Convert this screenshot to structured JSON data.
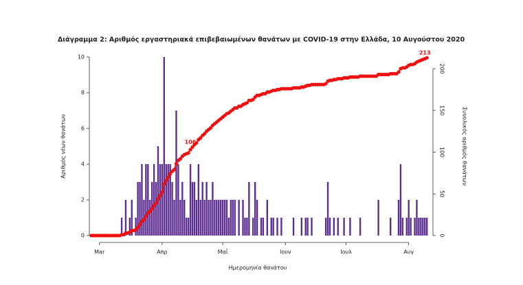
{
  "chart_data": {
    "type": "bar-line",
    "title": "Διάγραμμα 2: Αριθμός εργαστηριακά επιβεβαιωμένων θανάτων με COVID-19 στην Ελλάδα, 10 Αυγούστου 2020",
    "xlabel": "Ημερομηνία θανάτου",
    "ylabel": "Αριθμός νέων θανάτων",
    "y2label": "Συνολικός αριθμός θανάτων",
    "x": [
      -4,
      -3,
      -2,
      -1,
      0,
      1,
      2,
      3,
      4,
      5,
      6,
      7,
      8,
      9,
      10,
      11,
      12,
      13,
      14,
      15,
      16,
      17,
      18,
      19,
      20,
      21,
      22,
      23,
      24,
      25,
      26,
      27,
      28,
      29,
      30,
      31,
      32,
      33,
      34,
      35,
      36,
      37,
      38,
      39,
      40,
      41,
      42,
      43,
      44,
      45,
      46,
      47,
      48,
      49,
      50,
      51,
      52,
      53,
      54,
      55,
      56,
      57,
      58,
      59,
      60,
      61,
      62,
      63,
      64,
      65,
      66,
      67,
      68,
      69,
      70,
      71,
      72,
      73,
      74,
      75,
      76,
      77,
      78,
      79,
      80,
      81,
      82,
      83,
      84,
      85,
      86,
      87,
      88,
      89,
      90,
      91,
      92,
      93,
      94,
      95,
      96,
      97,
      98,
      99,
      100,
      101,
      102,
      103,
      104,
      105,
      106,
      107,
      108,
      109,
      110,
      111,
      112,
      113,
      114,
      115,
      116,
      117,
      118,
      119,
      120,
      121,
      122,
      123,
      124,
      125,
      126,
      127,
      128,
      129,
      130,
      131,
      132,
      133,
      134,
      135,
      136,
      137,
      138,
      139,
      140,
      141,
      142,
      143,
      144,
      145,
      146,
      147,
      148,
      149,
      150,
      151,
      152,
      153,
      154,
      155,
      156,
      157,
      158,
      159,
      160,
      161,
      162
    ],
    "series": [
      {
        "name": "Νέοι θάνατοι",
        "color": "#5c2d91",
        "axis": "y",
        "values": [
          0,
          0,
          0,
          0,
          0,
          0,
          0,
          0,
          0,
          0,
          0,
          0,
          0,
          0,
          0,
          1,
          0,
          2,
          0,
          1,
          2,
          0,
          1,
          3,
          3,
          4,
          2,
          4,
          4,
          2,
          3,
          4,
          3,
          5,
          4,
          4,
          10,
          4,
          4,
          4,
          3,
          2,
          7,
          4,
          2,
          3,
          2,
          1,
          1,
          4,
          3,
          3,
          2,
          4,
          2,
          3,
          2,
          3,
          2,
          2,
          3,
          2,
          2,
          2,
          2,
          2,
          2,
          2,
          1,
          2,
          2,
          2,
          0,
          2,
          0,
          2,
          1,
          1,
          3,
          0,
          1,
          3,
          2,
          0,
          1,
          1,
          0,
          2,
          0,
          1,
          1,
          0,
          1,
          0,
          1,
          0,
          0,
          0,
          0,
          0,
          1,
          0,
          0,
          0,
          1,
          0,
          1,
          1,
          0,
          1,
          0,
          0,
          0,
          0,
          0,
          0,
          1,
          3,
          1,
          0,
          1,
          0,
          1,
          0,
          0,
          1,
          0,
          0,
          1,
          0,
          0,
          0,
          0,
          1,
          0,
          0,
          0,
          0,
          0,
          0,
          0,
          0,
          2,
          0,
          0,
          0,
          0,
          0,
          1,
          0,
          0,
          0,
          2,
          4,
          1,
          0,
          1,
          2,
          1,
          0,
          1,
          2,
          1,
          1,
          1,
          1,
          1
        ]
      },
      {
        "name": "Συνολικοί θάνατοι",
        "color": "#ee1111",
        "axis": "y2",
        "values": [
          0,
          0,
          0,
          0,
          0,
          0,
          0,
          0,
          0,
          0,
          0,
          0,
          0,
          0,
          0,
          1,
          1,
          3,
          3,
          4,
          6,
          6,
          7,
          10,
          13,
          17,
          19,
          23,
          27,
          29,
          32,
          36,
          39,
          44,
          48,
          52,
          62,
          66,
          70,
          74,
          77,
          79,
          86,
          90,
          92,
          95,
          97,
          98,
          99,
          103,
          106,
          109,
          111,
          115,
          117,
          120,
          122,
          125,
          127,
          129,
          132,
          134,
          136,
          138,
          140,
          142,
          144,
          146,
          147,
          149,
          151,
          153,
          153,
          155,
          155,
          157,
          158,
          159,
          162,
          162,
          163,
          166,
          168,
          168,
          169,
          170,
          170,
          172,
          172,
          173,
          174,
          174,
          175,
          175,
          176,
          176,
          176,
          176,
          176,
          176,
          177,
          177,
          177,
          177,
          178,
          178,
          179,
          180,
          180,
          181,
          181,
          181,
          181,
          181,
          181,
          181,
          182,
          185,
          186,
          186,
          187,
          187,
          188,
          188,
          188,
          189,
          189,
          189,
          190,
          190,
          190,
          190,
          190,
          191,
          191,
          191,
          191,
          191,
          191,
          191,
          191,
          191,
          193,
          193,
          193,
          193,
          193,
          193,
          194,
          194,
          194,
          194,
          196,
          200,
          201,
          201,
          202,
          204,
          205,
          205,
          206,
          208,
          209,
          210,
          211,
          212,
          213
        ]
      }
    ],
    "annotations": [
      {
        "x": 46,
        "value": 106
      },
      {
        "x": 162,
        "value": 213
      }
    ],
    "xlim": [
      -5,
      165
    ],
    "xticks": [
      {
        "value": 0,
        "label": "Mar"
      },
      {
        "value": 31,
        "label": "Απρ"
      },
      {
        "value": 61,
        "label": "Μαΐ"
      },
      {
        "value": 92,
        "label": "Ιουν"
      },
      {
        "value": 122,
        "label": "Ιουλ"
      },
      {
        "value": 153,
        "label": "Αυγ"
      }
    ],
    "ylim": [
      0,
      10
    ],
    "yticks": [
      0,
      2,
      4,
      6,
      8,
      10
    ],
    "y2lim": [
      0,
      214
    ],
    "y2ticks": [
      0,
      50,
      100,
      150,
      200
    ]
  }
}
